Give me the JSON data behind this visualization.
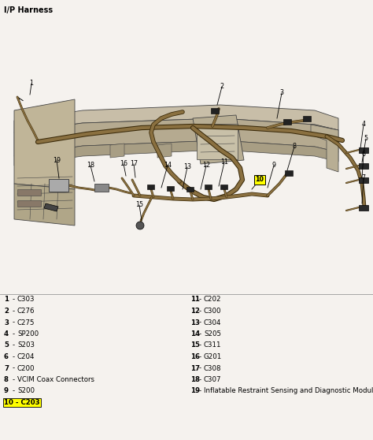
{
  "title": "I/P Harness",
  "title_fontsize": 7,
  "bg_color": "#f5f2ee",
  "diagram_bg": "#e8e0d0",
  "legend_left": [
    [
      "1",
      "C303"
    ],
    [
      "2",
      "C276"
    ],
    [
      "3",
      "C275"
    ],
    [
      "4",
      "SP200"
    ],
    [
      "5",
      "S203"
    ],
    [
      "6",
      "C204"
    ],
    [
      "7",
      "C200"
    ],
    [
      "8",
      "VCIM Coax Connectors"
    ],
    [
      "9",
      "S200"
    ],
    [
      "10",
      "C203"
    ]
  ],
  "legend_right": [
    [
      "11",
      "C202"
    ],
    [
      "12",
      "C300"
    ],
    [
      "13",
      "C304"
    ],
    [
      "14",
      "S205"
    ],
    [
      "15",
      "C311"
    ],
    [
      "16",
      "G201"
    ],
    [
      "17",
      "C308"
    ],
    [
      "18",
      "C307"
    ],
    [
      "19",
      "Inflatable Restraint Sensing and Diagnostic Module (SDM)"
    ]
  ],
  "highlight_color": "#ffff00",
  "highlight_item": "10",
  "legend_fontsize": 6.2,
  "frame_color": "#b8a888",
  "frame_edge": "#444444",
  "wire_dark": "#3a2a0a",
  "wire_light": "#8a7040",
  "connector_color": "#222222"
}
